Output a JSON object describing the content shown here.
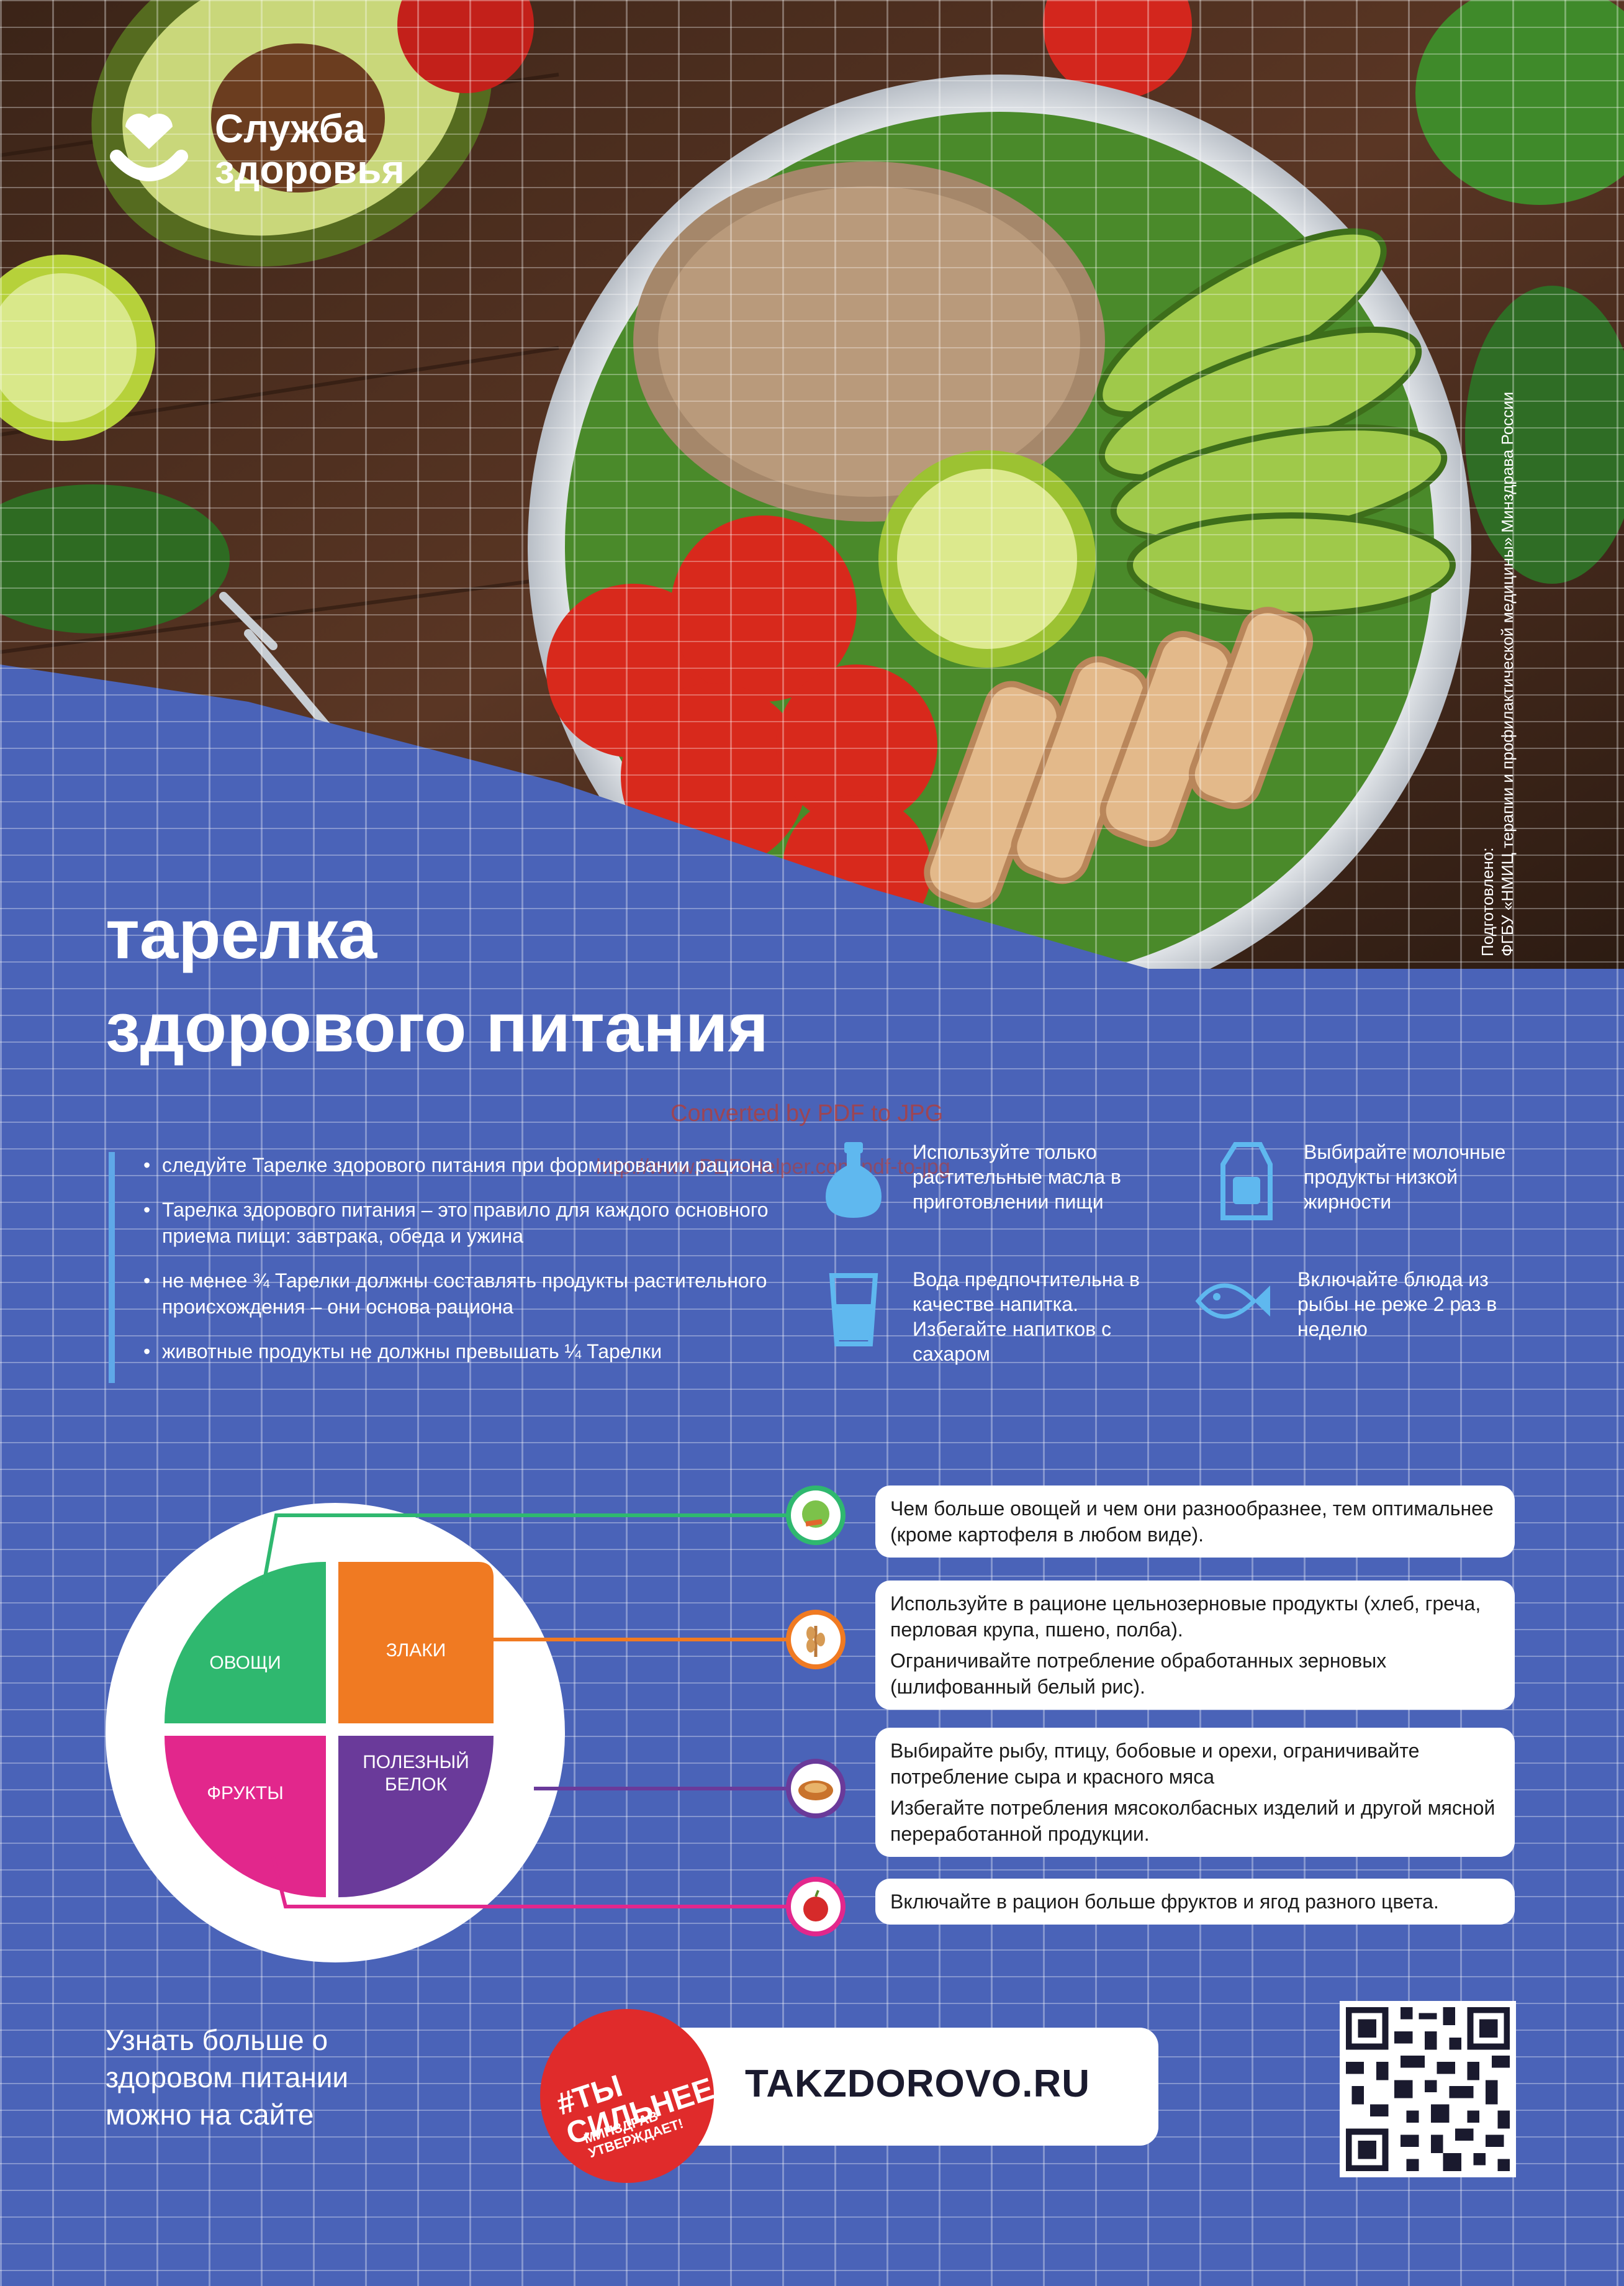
{
  "brand": {
    "line1": "Служба",
    "line2": "здоровья"
  },
  "title": {
    "line1": "тарелка",
    "line2": "здорового питания"
  },
  "credit": {
    "line1": "Подготовлено:",
    "line2": "ФГБУ «НМИЦ терапии и профилактической медицины» Минздрава России"
  },
  "watermark": {
    "line1": "Converted by PDF to JPG",
    "line2": "http://www.PDF-Helper.com/pdf-to-jpg"
  },
  "bullets": [
    "следуйте Тарелке здорового питания при формировании рациона",
    "Тарелка здорового питания – это правило для каждого основного приема пищи: завтрака, обеда и ужина",
    "не менее ¾ Тарелки должны составлять продукты растительного происхождения – они основа рациона",
    "животные продукты не должны превышать ¼ Тарелки"
  ],
  "tips": [
    {
      "icon": "oil-bottle-icon",
      "text": "Используйте только растительные масла в приготовлении пищи"
    },
    {
      "icon": "milk-carton-icon",
      "text": "Выбирайте молочные продукты низкой жирности"
    },
    {
      "icon": "water-glass-icon",
      "text": "Вода предпочтительна в качестве напитка. Избегайте напитков с сахаром"
    },
    {
      "icon": "fish-icon",
      "text": "Включайте блюда из рыбы не реже 2 раз в неделю"
    }
  ],
  "plate": {
    "vegetables": "ОВОЩИ",
    "grains": "ЗЛАКИ",
    "fruits": "ФРУКТЫ",
    "protein_line1": "ПОЛЕЗНЫЙ",
    "protein_line2": "БЕЛОК"
  },
  "colors": {
    "vegetables": "#2fb86f",
    "grains": "#f07a22",
    "fruits": "#e2278c",
    "protein": "#6a3a9a",
    "background": "#4a63b8"
  },
  "info": {
    "vegetables": [
      "Чем больше овощей и чем они разнообразнее, тем оптимальнее (кроме картофеля в любом виде)."
    ],
    "grains": [
      "Используйте в рационе цельнозерновые продукты (хлеб, греча, перловая крупа, пшено, полба).",
      "Ограничивайте потребление обработанных зерновых (шлифованный белый рис)."
    ],
    "protein": [
      "Выбирайте рыбу, птицу, бобовые и орехи, ограничивайте потребление сыра и красного мяса",
      "Избегайте потребления мясоколбасных изделий и другой мясной переработанной продукции."
    ],
    "fruits": [
      "Включайте в рацион больше фруктов и ягод разного цвета."
    ]
  },
  "footer": {
    "learn_line1": "Узнать больше о",
    "learn_line2": "здоровом питании",
    "learn_line3": "можно на сайте",
    "site": "TAKZDOROVO.RU",
    "badge_line1": "#ТЫ СИЛЬНЕЕ",
    "badge_line2": "МИНЗДРАВ УТВЕРЖДАЕТ!"
  }
}
